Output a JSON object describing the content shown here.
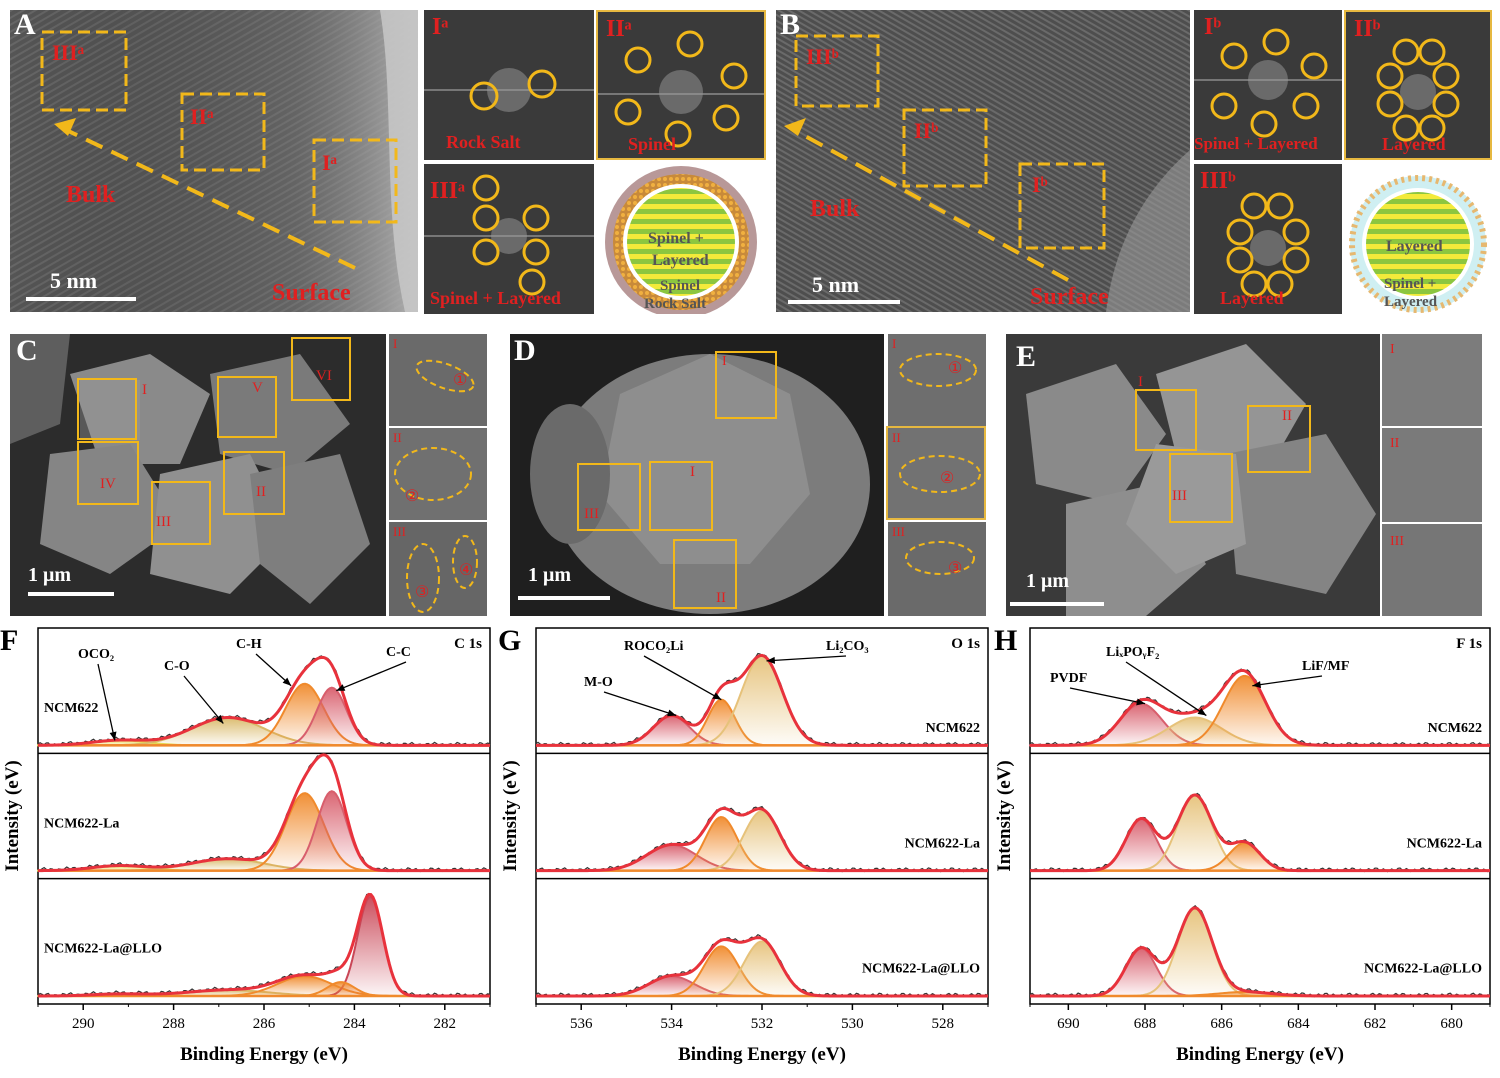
{
  "panels": {
    "A": {
      "letter": "A",
      "regions": [
        "IIIᵃ",
        "IIᵃ",
        "Iᵃ"
      ],
      "bulk": "Bulk",
      "surface": "Surface",
      "scale": "5 nm",
      "ffts": [
        {
          "label": "Iᵃ",
          "caption": "Rock Salt"
        },
        {
          "label": "IIᵃ",
          "caption": "Spinel"
        },
        {
          "label": "IIIᵃ",
          "caption": "Spinel + Layered"
        }
      ],
      "schematic": {
        "core": "Spinel +",
        "core2": "Layered",
        "shell": "Spinel",
        "outer": "Rock Salt"
      }
    },
    "B": {
      "letter": "B",
      "regions": [
        "IIIᵇ",
        "IIᵇ",
        "Iᵇ"
      ],
      "bulk": "Bulk",
      "surface": "Surface",
      "scale": "5 nm",
      "ffts": [
        {
          "label": "Iᵇ",
          "caption": "Spinel + Layered"
        },
        {
          "label": "IIᵇ",
          "caption": "Layered"
        },
        {
          "label": "IIIᵇ",
          "caption": "Layered"
        }
      ],
      "schematic": {
        "core": "Layered",
        "shell": "Spinel +",
        "shell2": "Layered"
      }
    },
    "C": {
      "letter": "C",
      "boxes": [
        "I",
        "V",
        "VI",
        "IV",
        "III",
        "II"
      ],
      "scale": "1 μm",
      "insets": [
        "I",
        "II",
        "III"
      ],
      "marks": [
        "①",
        "②",
        "③",
        "④"
      ]
    },
    "D": {
      "letter": "D",
      "boxes": [
        "I",
        "III",
        "II"
      ],
      "boxtop": "I",
      "scale": "1 μm",
      "insets": [
        "I",
        "II",
        "III"
      ],
      "marks": [
        "①",
        "②",
        "③"
      ]
    },
    "E": {
      "letter": "E",
      "boxes": [
        "I",
        "II",
        "III"
      ],
      "scale": "1 μm",
      "insets": [
        "I",
        "II",
        "III"
      ]
    }
  },
  "chart_data": [
    {
      "panel": "F",
      "type": "line",
      "title": "C 1s",
      "xlabel": "Binding Energy (eV)",
      "ylabel": "Intensity (eV)",
      "xlim": [
        291,
        281
      ],
      "xticks": [
        290,
        288,
        286,
        284,
        282
      ],
      "samples": [
        "NCM622",
        "NCM622-La",
        "NCM622-La@LLO"
      ],
      "peak_labels": [
        "OCO₂",
        "C-O",
        "C-H",
        "C-C"
      ],
      "components": [
        {
          "name": "OCO₂",
          "center": 289.2,
          "color": "#e8dc50",
          "heights": [
            0.05,
            0.05,
            0.02
          ],
          "widths": [
            0.6,
            0.6,
            0.6
          ]
        },
        {
          "name": "C-O",
          "center": 286.8,
          "color": "#d9b968",
          "heights": [
            0.28,
            0.12,
            0.06
          ],
          "widths": [
            0.8,
            0.8,
            0.9
          ]
        },
        {
          "name": "C-H",
          "center": 285.1,
          "color": "#f08a2c",
          "heights": [
            0.62,
            0.78,
            0.2
          ],
          "widths": [
            0.42,
            0.42,
            0.6
          ]
        },
        {
          "name": "C-C",
          "center": 284.5,
          "color": "#d85e6c",
          "heights": [
            0.58,
            0.8,
            0.0
          ],
          "widths": [
            0.33,
            0.33,
            0.3
          ]
        },
        {
          "name": "C-C2",
          "center": 283.65,
          "color": "#c94656",
          "heights": [
            0.0,
            0.0,
            1.0
          ],
          "widths": [
            0.25,
            0.25,
            0.28
          ]
        },
        {
          "name": "C-C3",
          "center": 284.3,
          "color": "#f08a2c",
          "heights": [
            0.0,
            0.0,
            0.14
          ],
          "widths": [
            0.3,
            0.3,
            0.3
          ]
        }
      ]
    },
    {
      "panel": "G",
      "type": "line",
      "title": "O 1s",
      "xlabel": "Binding Energy (eV)",
      "ylabel": "Intensity (eV)",
      "xlim": [
        537,
        527
      ],
      "xticks": [
        536,
        534,
        532,
        530,
        528
      ],
      "samples": [
        "NCM622",
        "NCM622-La",
        "NCM622-La@LLO"
      ],
      "peak_labels": [
        "M-O",
        "ROCO₂Li",
        "Li₂CO₃"
      ],
      "components": [
        {
          "name": "M-O",
          "center": 534.0,
          "color": "#d85e6c",
          "heights": [
            0.3,
            0.26,
            0.2
          ],
          "widths": [
            0.4,
            0.55,
            0.5
          ]
        },
        {
          "name": "ROCO₂Li",
          "center": 532.9,
          "color": "#f08a2c",
          "heights": [
            0.46,
            0.54,
            0.5
          ],
          "widths": [
            0.3,
            0.35,
            0.38
          ]
        },
        {
          "name": "Li₂CO₃",
          "center": 532.0,
          "color": "#e6c27a",
          "heights": [
            0.9,
            0.6,
            0.55
          ],
          "widths": [
            0.45,
            0.4,
            0.4
          ]
        }
      ]
    },
    {
      "panel": "H",
      "type": "line",
      "title": "F 1s",
      "xlabel": "Binding Energy (eV)",
      "ylabel": "Intensity (eV)",
      "xlim": [
        691,
        679
      ],
      "xticks": [
        690,
        688,
        686,
        684,
        682,
        680
      ],
      "samples": [
        "NCM622",
        "NCM622-La",
        "NCM622-La@LLO"
      ],
      "peak_labels": [
        "PVDF",
        "LiₓPOᵧF₂",
        "LiF/MF"
      ],
      "components": [
        {
          "name": "PVDF",
          "center": 688.1,
          "color": "#d85e6c",
          "heights": [
            0.42,
            0.52,
            0.48
          ],
          "widths": [
            0.55,
            0.4,
            0.4
          ]
        },
        {
          "name": "LixPOyF2",
          "center": 686.7,
          "color": "#e6c27a",
          "heights": [
            0.28,
            0.76,
            0.88
          ],
          "widths": [
            0.7,
            0.45,
            0.45
          ]
        },
        {
          "name": "LiF/MF",
          "center": 685.4,
          "color": "#f08a2c",
          "heights": [
            0.7,
            0.28,
            0.04
          ],
          "widths": [
            0.55,
            0.4,
            0.7
          ]
        }
      ]
    }
  ]
}
